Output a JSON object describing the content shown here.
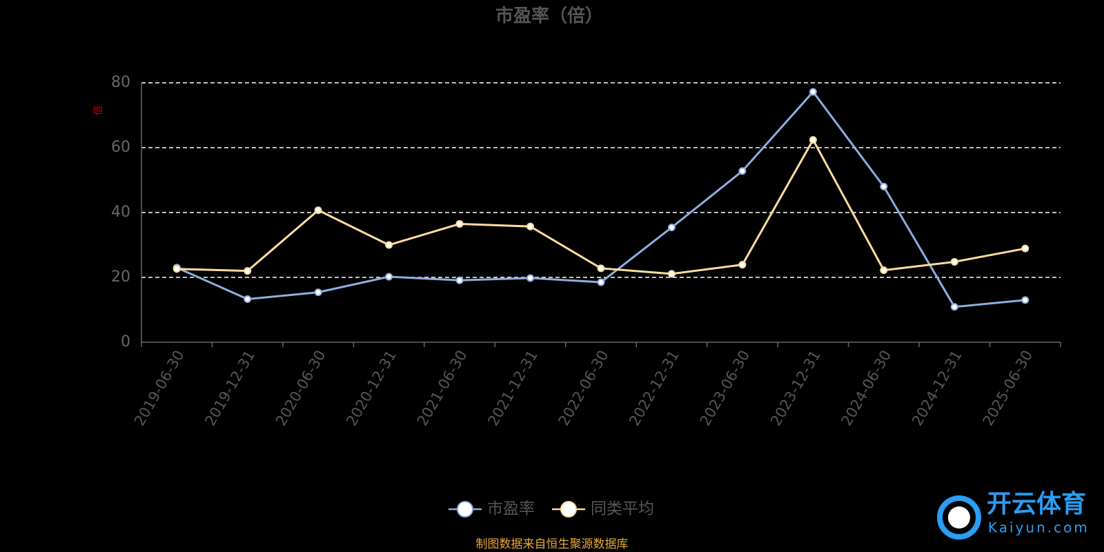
{
  "chart_data": {
    "type": "line",
    "title": "市盈率（倍）",
    "y_label": "倍",
    "categories": [
      "2019-06-30",
      "2019-12-31",
      "2020-06-30",
      "2020-12-31",
      "2021-06-30",
      "2021-12-31",
      "2022-06-30",
      "2022-12-31",
      "2023-06-30",
      "2023-12-31",
      "2024-06-30",
      "2024-12-31",
      "2025-06-30"
    ],
    "series": [
      {
        "name": "市盈率",
        "color": "#8eaee0",
        "values": [
          23.0,
          13.3,
          15.4,
          20.2,
          19.1,
          19.8,
          18.5,
          35.4,
          52.8,
          77.2,
          48.0,
          10.9,
          13.0
        ]
      },
      {
        "name": "同类平均",
        "color": "#ffdd9e",
        "values": [
          22.6,
          22.0,
          40.7,
          30.0,
          36.5,
          35.7,
          22.8,
          21.1,
          23.9,
          62.4,
          22.2,
          24.8,
          28.9
        ]
      }
    ],
    "ylim": [
      0,
      80
    ],
    "yticks": [
      0,
      20,
      40,
      60,
      80
    ],
    "grid": true,
    "source": "制图数据来自恒生聚源数据库",
    "watermark": {
      "name": "开云体育",
      "site": "Kaiyun.com"
    }
  }
}
